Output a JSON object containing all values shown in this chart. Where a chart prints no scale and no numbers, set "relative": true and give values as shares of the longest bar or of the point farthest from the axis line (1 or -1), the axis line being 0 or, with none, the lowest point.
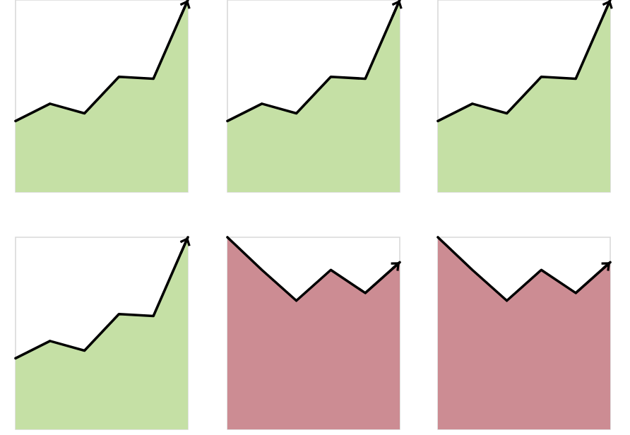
{
  "chart_data": [
    {
      "type": "area",
      "relative": true,
      "categories": [
        null,
        null,
        null,
        null,
        null,
        null
      ],
      "values": [
        0.37,
        0.46,
        0.41,
        0.6,
        0.59,
        1
      ],
      "color": "#c5e0a5"
    },
    {
      "type": "area",
      "relative": true,
      "categories": [
        null,
        null,
        null,
        null,
        null,
        null
      ],
      "values": [
        0.37,
        0.46,
        0.41,
        0.6,
        0.59,
        1
      ],
      "color": "#c5e0a5"
    },
    {
      "type": "area",
      "relative": true,
      "categories": [
        null,
        null,
        null,
        null,
        null,
        null
      ],
      "values": [
        0.37,
        0.46,
        0.41,
        0.6,
        0.59,
        1
      ],
      "color": "#c5e0a5"
    },
    {
      "type": "area",
      "relative": true,
      "categories": [
        null,
        null,
        null,
        null,
        null,
        null
      ],
      "values": [
        0.37,
        0.46,
        0.41,
        0.6,
        0.59,
        1
      ],
      "color": "#c5e0a5"
    },
    {
      "type": "area",
      "relative": true,
      "categories": [
        null,
        null,
        null,
        null,
        null,
        null
      ],
      "values": [
        1,
        0.83,
        0.67,
        0.83,
        0.71,
        0.87
      ],
      "color": "#cc8c93"
    },
    {
      "type": "area",
      "relative": true,
      "categories": [
        null,
        null,
        null,
        null,
        null,
        null
      ],
      "values": [
        1,
        0.83,
        0.67,
        0.83,
        0.71,
        0.87
      ],
      "color": "#cc8c93"
    }
  ]
}
